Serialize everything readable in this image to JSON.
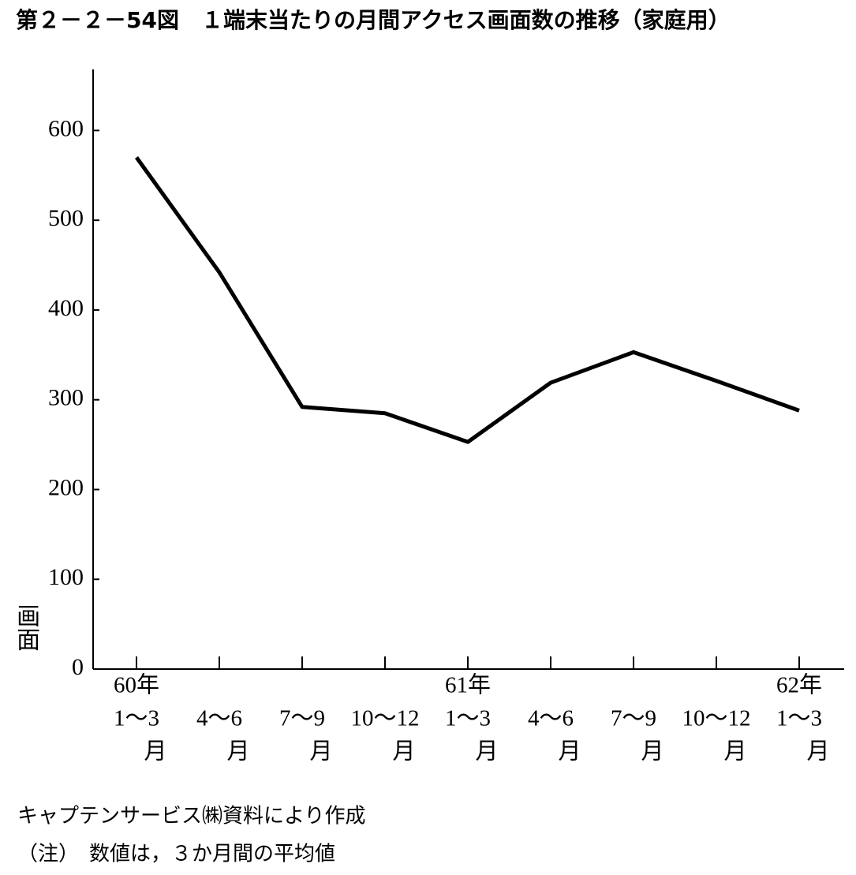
{
  "chart_data": {
    "type": "line",
    "title": "第２－２－54図　１端末当たりの月間アクセス画面数の推移（家庭用）",
    "ylabel": "画面",
    "categories": [
      [
        "60年",
        "1～3",
        "月"
      ],
      [
        "4～6",
        "月"
      ],
      [
        "7～9",
        "月"
      ],
      [
        "10～12",
        "月"
      ],
      [
        "61年",
        "1～3",
        "月"
      ],
      [
        "4～6",
        "月"
      ],
      [
        "7～9",
        "月"
      ],
      [
        "10～12",
        "月"
      ],
      [
        "62年",
        "1～3",
        "月"
      ]
    ],
    "values": [
      570,
      442,
      292,
      285,
      253,
      319,
      353,
      321,
      288
    ],
    "color": "#000000",
    "ylim": [
      0,
      668
    ],
    "yticks": [
      0,
      100,
      200,
      300,
      400,
      500,
      600
    ],
    "source": "キャプテンサービス㈱資料により作成",
    "note": "（注）　数値は，３か月間の平均値"
  }
}
